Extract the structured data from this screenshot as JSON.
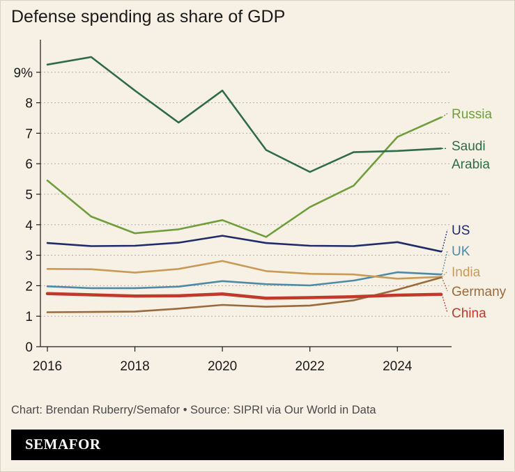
{
  "header": {
    "title": "Defense spending as share of GDP"
  },
  "footer": {
    "source": "Chart: Brendan Ruberry/Semafor • Source: SIPRI via Our World in Data",
    "brand": "SEMAFOR"
  },
  "colors": {
    "background": "#f7f0e4",
    "grid": "#b8b0a2",
    "saudi_arabia": "#2f6b46",
    "russia": "#6f9e3c",
    "us": "#1f2a6b",
    "uk": "#4d8aa6",
    "india": "#c99a55",
    "germany": "#9a6a3a",
    "china": "#c0392b"
  },
  "chart_data": {
    "type": "line",
    "title": "Defense spending as share of GDP",
    "xlabel": "",
    "ylabel": "",
    "xlim": [
      2016,
      2025
    ],
    "ylim": [
      0,
      10
    ],
    "x_ticks": [
      2016,
      2018,
      2020,
      2022,
      2024
    ],
    "y_ticks": [
      0,
      1,
      2,
      3,
      4,
      5,
      6,
      7,
      8,
      9
    ],
    "y_tick_labels": [
      "0",
      "1",
      "2",
      "3",
      "4",
      "5",
      "6",
      "7",
      "8",
      "9%"
    ],
    "grid": "horizontal dotted",
    "legend": "direct labels at right end of lines",
    "x": [
      2016,
      2017,
      2018,
      2019,
      2020,
      2021,
      2022,
      2023,
      2024,
      2025
    ],
    "series": [
      {
        "key": "saudi_arabia",
        "name": "Saudi Arabia",
        "label_lines": [
          "Saudi",
          "Arabia"
        ],
        "values": [
          9.25,
          9.5,
          8.4,
          7.35,
          8.4,
          6.45,
          5.73,
          6.38,
          6.42,
          6.5
        ]
      },
      {
        "key": "russia",
        "name": "Russia",
        "label_lines": [
          "Russia"
        ],
        "values": [
          5.45,
          4.27,
          3.72,
          3.85,
          4.15,
          3.6,
          4.58,
          5.28,
          6.88,
          7.52
        ]
      },
      {
        "key": "us",
        "name": "US",
        "label_lines": [
          "US"
        ],
        "values": [
          3.4,
          3.3,
          3.31,
          3.41,
          3.64,
          3.4,
          3.31,
          3.3,
          3.43,
          3.12
        ]
      },
      {
        "key": "india",
        "name": "India",
        "label_lines": [
          "India"
        ],
        "values": [
          2.55,
          2.54,
          2.43,
          2.55,
          2.81,
          2.48,
          2.39,
          2.37,
          2.23,
          2.29
        ]
      },
      {
        "key": "uk",
        "name": "UK",
        "label_lines": [
          "UK"
        ],
        "values": [
          1.98,
          1.92,
          1.92,
          1.97,
          2.15,
          2.05,
          2.01,
          2.17,
          2.44,
          2.37
        ]
      },
      {
        "key": "germany",
        "name": "Germany",
        "label_lines": [
          "Germany"
        ],
        "values": [
          1.13,
          1.14,
          1.15,
          1.25,
          1.37,
          1.31,
          1.35,
          1.52,
          1.87,
          2.27
        ]
      },
      {
        "key": "china",
        "name": "China",
        "label_lines": [
          "China"
        ],
        "values": [
          1.74,
          1.7,
          1.66,
          1.67,
          1.73,
          1.59,
          1.61,
          1.64,
          1.69,
          1.72
        ]
      }
    ]
  }
}
